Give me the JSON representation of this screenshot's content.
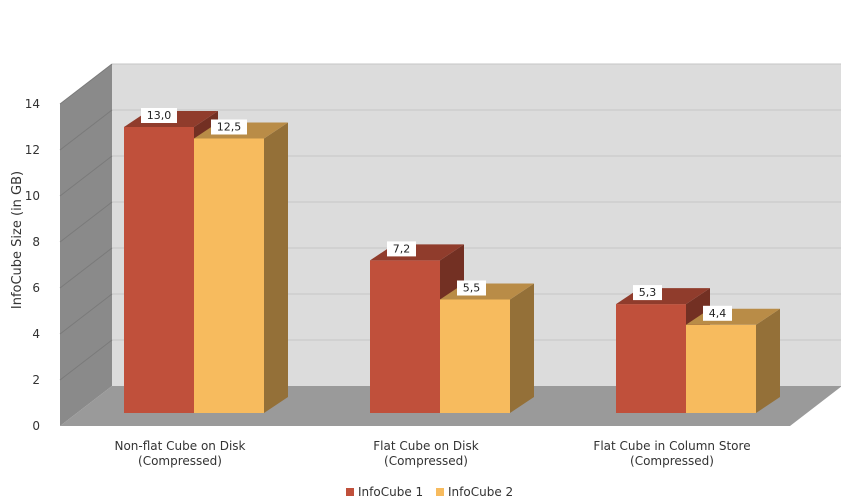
{
  "chart_data": {
    "type": "bar",
    "title": "",
    "xlabel": "",
    "ylabel": "InfoCube Size (in GB)",
    "ylim": [
      0,
      14
    ],
    "yticks": [
      0,
      2,
      4,
      6,
      8,
      10,
      12,
      14
    ],
    "grid": true,
    "legend": "bottom",
    "categories": [
      [
        "Non-flat Cube on Disk",
        "(Compressed)"
      ],
      [
        "Flat Cube on Disk",
        "(Compressed)"
      ],
      [
        "Flat Cube in Column Store",
        "(Compressed)"
      ]
    ],
    "series": [
      {
        "name": "InfoCube 1",
        "values": [
          13.0,
          7.2,
          5.3
        ],
        "labels": [
          "13,0",
          "7,2",
          "5,3"
        ],
        "color": "#c0503b"
      },
      {
        "name": "InfoCube 2",
        "values": [
          12.5,
          5.5,
          4.4
        ],
        "labels": [
          "12,5",
          "5,5",
          "4,4"
        ],
        "color": "#f7bb5e"
      }
    ]
  }
}
